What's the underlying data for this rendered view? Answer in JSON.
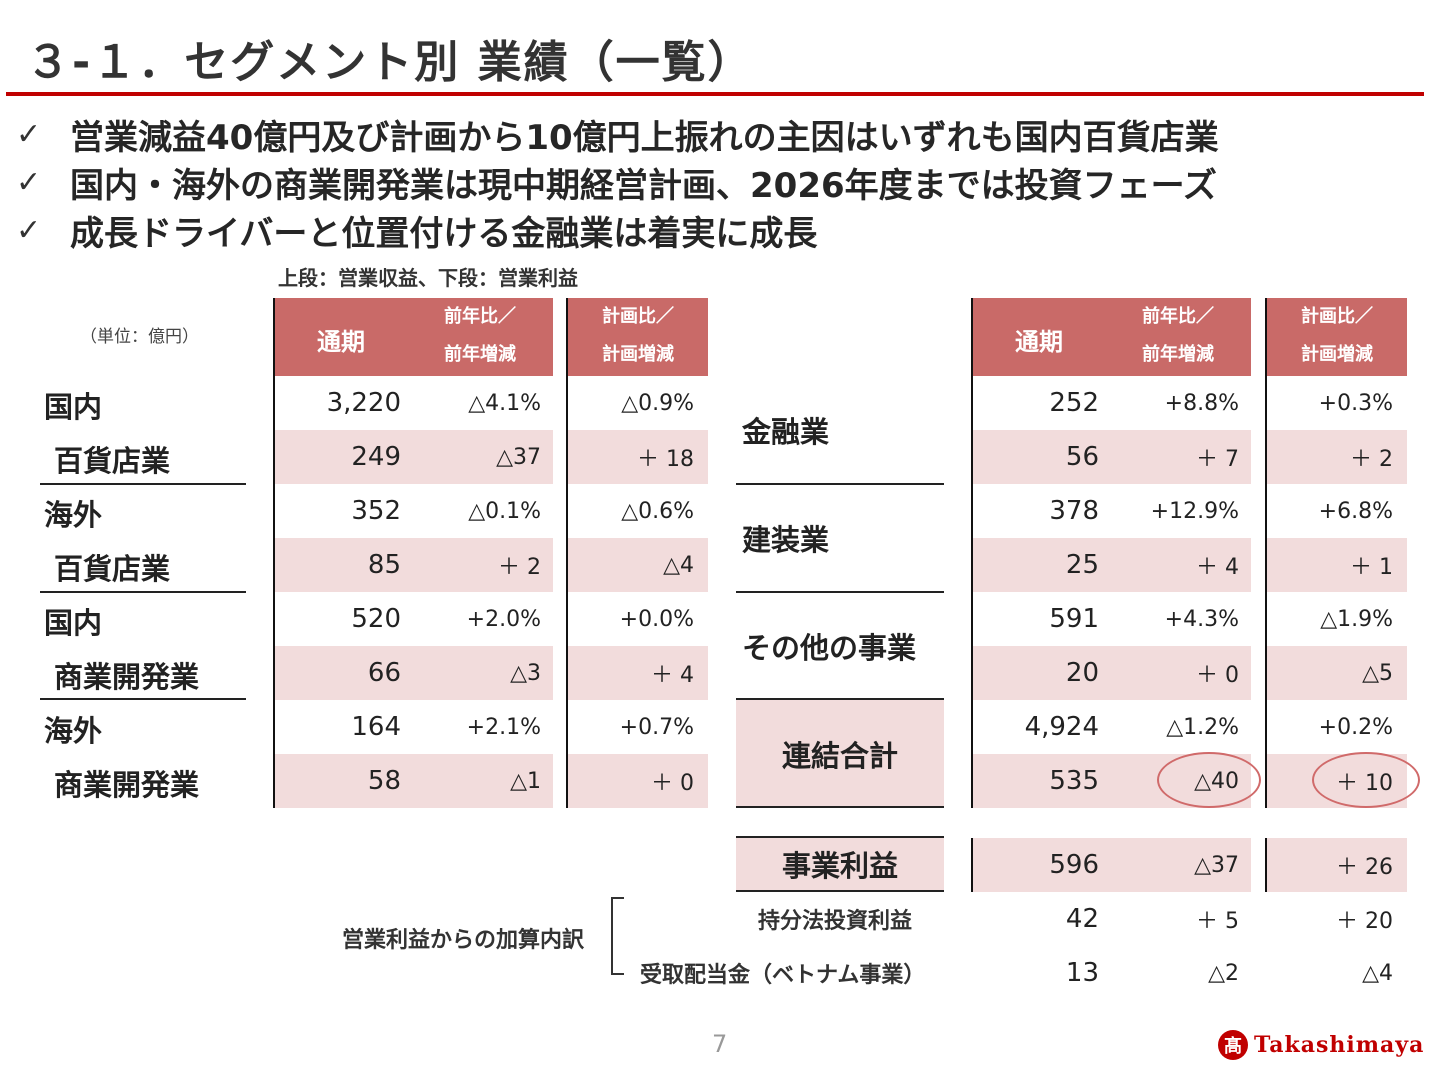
{
  "title": "３-１．セグメント別 業績（一覧）",
  "bullets": [
    "営業減益40億円及び計画から10億円上振れの主因はいずれも国内百貨店業",
    "国内・海外の商業開発業は現中期経営計画、2026年度までは投資フェーズ",
    "成長ドライバーと位置付ける金融業は着実に成長"
  ],
  "check_mark": "✓",
  "note_top": "上段：営業収益、下段：営業利益",
  "unit": "（単位：億円）",
  "headers": {
    "annual": "通期",
    "yoy_line1": "前年比／",
    "yoy_line2": "前年増減",
    "plan_line1": "計画比／",
    "plan_line2": "計画増減"
  },
  "left_rows": [
    {
      "label": "国内",
      "annual": "3,220",
      "yoy": "△4.1%",
      "plan": "△0.9%"
    },
    {
      "label": "百貨店業",
      "annual": "249",
      "yoy": "△37",
      "plan": "＋ 18"
    },
    {
      "label": "海外",
      "annual": "352",
      "yoy": "△0.1%",
      "plan": "△0.6%"
    },
    {
      "label": "百貨店業",
      "annual": "85",
      "yoy": "＋ 2",
      "plan": "△4"
    },
    {
      "label": "国内",
      "annual": "520",
      "yoy": "+2.0%",
      "plan": "+0.0%"
    },
    {
      "label": "商業開発業",
      "annual": "66",
      "yoy": "△3",
      "plan": "＋ 4"
    },
    {
      "label": "海外",
      "annual": "164",
      "yoy": "+2.1%",
      "plan": "+0.7%"
    },
    {
      "label": "商業開発業",
      "annual": "58",
      "yoy": "△1",
      "plan": "＋ 0"
    }
  ],
  "right_labels": [
    "金融業",
    "建装業",
    "その他の事業",
    "連結合計"
  ],
  "right_rows": [
    {
      "annual": "252",
      "yoy": "+8.8%",
      "plan": "+0.3%"
    },
    {
      "annual": "56",
      "yoy": "＋ 7",
      "plan": "＋ 2"
    },
    {
      "annual": "378",
      "yoy": "+12.9%",
      "plan": "+6.8%"
    },
    {
      "annual": "25",
      "yoy": "＋ 4",
      "plan": "＋ 1"
    },
    {
      "annual": "591",
      "yoy": "+4.3%",
      "plan": "△1.9%"
    },
    {
      "annual": "20",
      "yoy": "＋ 0",
      "plan": "△5"
    },
    {
      "annual": "4,924",
      "yoy": "△1.2%",
      "plan": "+0.2%"
    },
    {
      "annual": "535",
      "yoy": "△40",
      "plan": "＋ 10"
    }
  ],
  "business_profit": {
    "label": "事業利益",
    "annual": "596",
    "yoy": "△37",
    "plan": "＋ 26"
  },
  "breakdown_label": "営業利益からの加算内訳",
  "breakdown_rows": [
    {
      "label": "持分法投資利益",
      "annual": "42",
      "yoy": "＋ 5",
      "plan": "＋ 20"
    },
    {
      "label": "受取配当金（ベトナム事業）",
      "annual": "13",
      "yoy": "△2",
      "plan": "△4"
    }
  ],
  "page_number": "7",
  "logo": {
    "mark": "髙",
    "text": "Takashimaya"
  },
  "colors": {
    "accent": "#c00000",
    "header": "#c96a68",
    "pink_row": "#f2dcdc",
    "circle": "#d06a6a"
  }
}
